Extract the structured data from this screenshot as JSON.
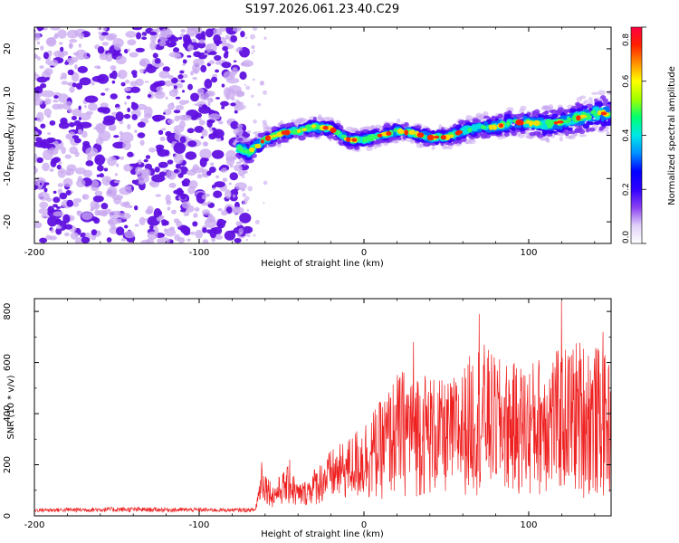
{
  "title": "S197.2026.061.23.40.C29",
  "colors": {
    "snr_line": "#ee2020",
    "noise_dot": "#6010e0",
    "noise_light": "#c8a8f0",
    "colormap": [
      "#ffffff",
      "#e8d8fb",
      "#b08af0",
      "#7a2ff0",
      "#4b00ff",
      "#0000ff",
      "#0088ff",
      "#00e0e0",
      "#00ff80",
      "#7cff00",
      "#ffff00",
      "#ff8800",
      "#ff0000",
      "#ff0066"
    ]
  },
  "chart_data": [
    {
      "type": "heatmap",
      "name": "spectrogram",
      "xlabel": "Height of straight line (km)",
      "ylabel": "Frequency (Hz)",
      "xlim": [
        -200,
        150
      ],
      "ylim": [
        -25,
        25
      ],
      "xticks": [
        "-200",
        "-100",
        "0",
        "100"
      ],
      "xtick_values": [
        -200,
        -100,
        0,
        100
      ],
      "yticks": [
        "-20",
        "-10",
        "0",
        "10",
        "20"
      ],
      "ytick_values": [
        -20,
        -10,
        0,
        10,
        20
      ],
      "colorbar": {
        "label": "Normalized spectral amplitude",
        "range": [
          0.0,
          0.8
        ],
        "ticks": [
          "0.0",
          "0.2",
          "0.4",
          "0.6",
          "0.8"
        ],
        "tick_values": [
          0.0,
          0.2,
          0.4,
          0.6,
          0.8
        ]
      },
      "noise_region": {
        "x": [
          -200,
          -76
        ],
        "y": [
          -25,
          25
        ],
        "amplitude": 0.05
      },
      "signal_band": {
        "x": [
          -76,
          -70,
          -60,
          -50,
          -40,
          -30,
          -20,
          -10,
          0,
          10,
          20,
          30,
          40,
          50,
          60,
          70,
          80,
          90,
          100,
          110,
          120,
          130,
          140,
          150
        ],
        "center": [
          -3,
          -4,
          -1,
          0.5,
          1,
          2,
          1.5,
          -1,
          -1,
          0,
          1,
          0.5,
          -0.5,
          -0.5,
          1,
          2,
          2,
          3,
          3,
          2.5,
          3,
          4,
          5,
          5
        ],
        "width": [
          3,
          3,
          2.5,
          2.5,
          2.5,
          2.5,
          2.5,
          2.5,
          2.5,
          2.5,
          2.5,
          2.5,
          2.5,
          2.5,
          3,
          3,
          3,
          3.5,
          3.5,
          4,
          4,
          4.5,
          5,
          5
        ],
        "peak_amplitude": 0.8
      }
    },
    {
      "type": "line",
      "name": "snr",
      "xlabel": "Height of straight line (km)",
      "ylabel": "SNR (10 * v/v)",
      "xlim": [
        -200,
        150
      ],
      "ylim": [
        0,
        850
      ],
      "xticks": [
        "-200",
        "-100",
        "0",
        "100"
      ],
      "xtick_values": [
        -200,
        -100,
        0,
        100
      ],
      "yticks": [
        "0",
        "200",
        "400",
        "600",
        "800"
      ],
      "ytick_values": [
        0,
        200,
        400,
        600,
        800
      ],
      "envelope": {
        "x": [
          -200,
          -150,
          -80,
          -66,
          -62,
          -55,
          -50,
          -45,
          -40,
          -35,
          -30,
          -20,
          -10,
          0,
          10,
          20,
          30,
          40,
          50,
          60,
          70,
          80,
          90,
          100,
          110,
          120,
          130,
          140,
          150
        ],
        "low": [
          15,
          15,
          15,
          15,
          60,
          30,
          40,
          40,
          25,
          40,
          40,
          50,
          60,
          50,
          60,
          70,
          70,
          70,
          80,
          80,
          80,
          90,
          80,
          60,
          80,
          80,
          70,
          60,
          70
        ],
        "high": [
          30,
          35,
          30,
          30,
          210,
          120,
          170,
          200,
          130,
          140,
          190,
          260,
          300,
          380,
          450,
          560,
          600,
          560,
          520,
          580,
          700,
          620,
          600,
          600,
          650,
          650,
          700,
          680,
          600
        ]
      },
      "peaks": [
        {
          "x": -62,
          "y": 210
        },
        {
          "x": -45,
          "y": 220
        },
        {
          "x": 30,
          "y": 680
        },
        {
          "x": 70,
          "y": 790
        },
        {
          "x": 120,
          "y": 840
        },
        {
          "x": 145,
          "y": 720
        }
      ]
    }
  ]
}
